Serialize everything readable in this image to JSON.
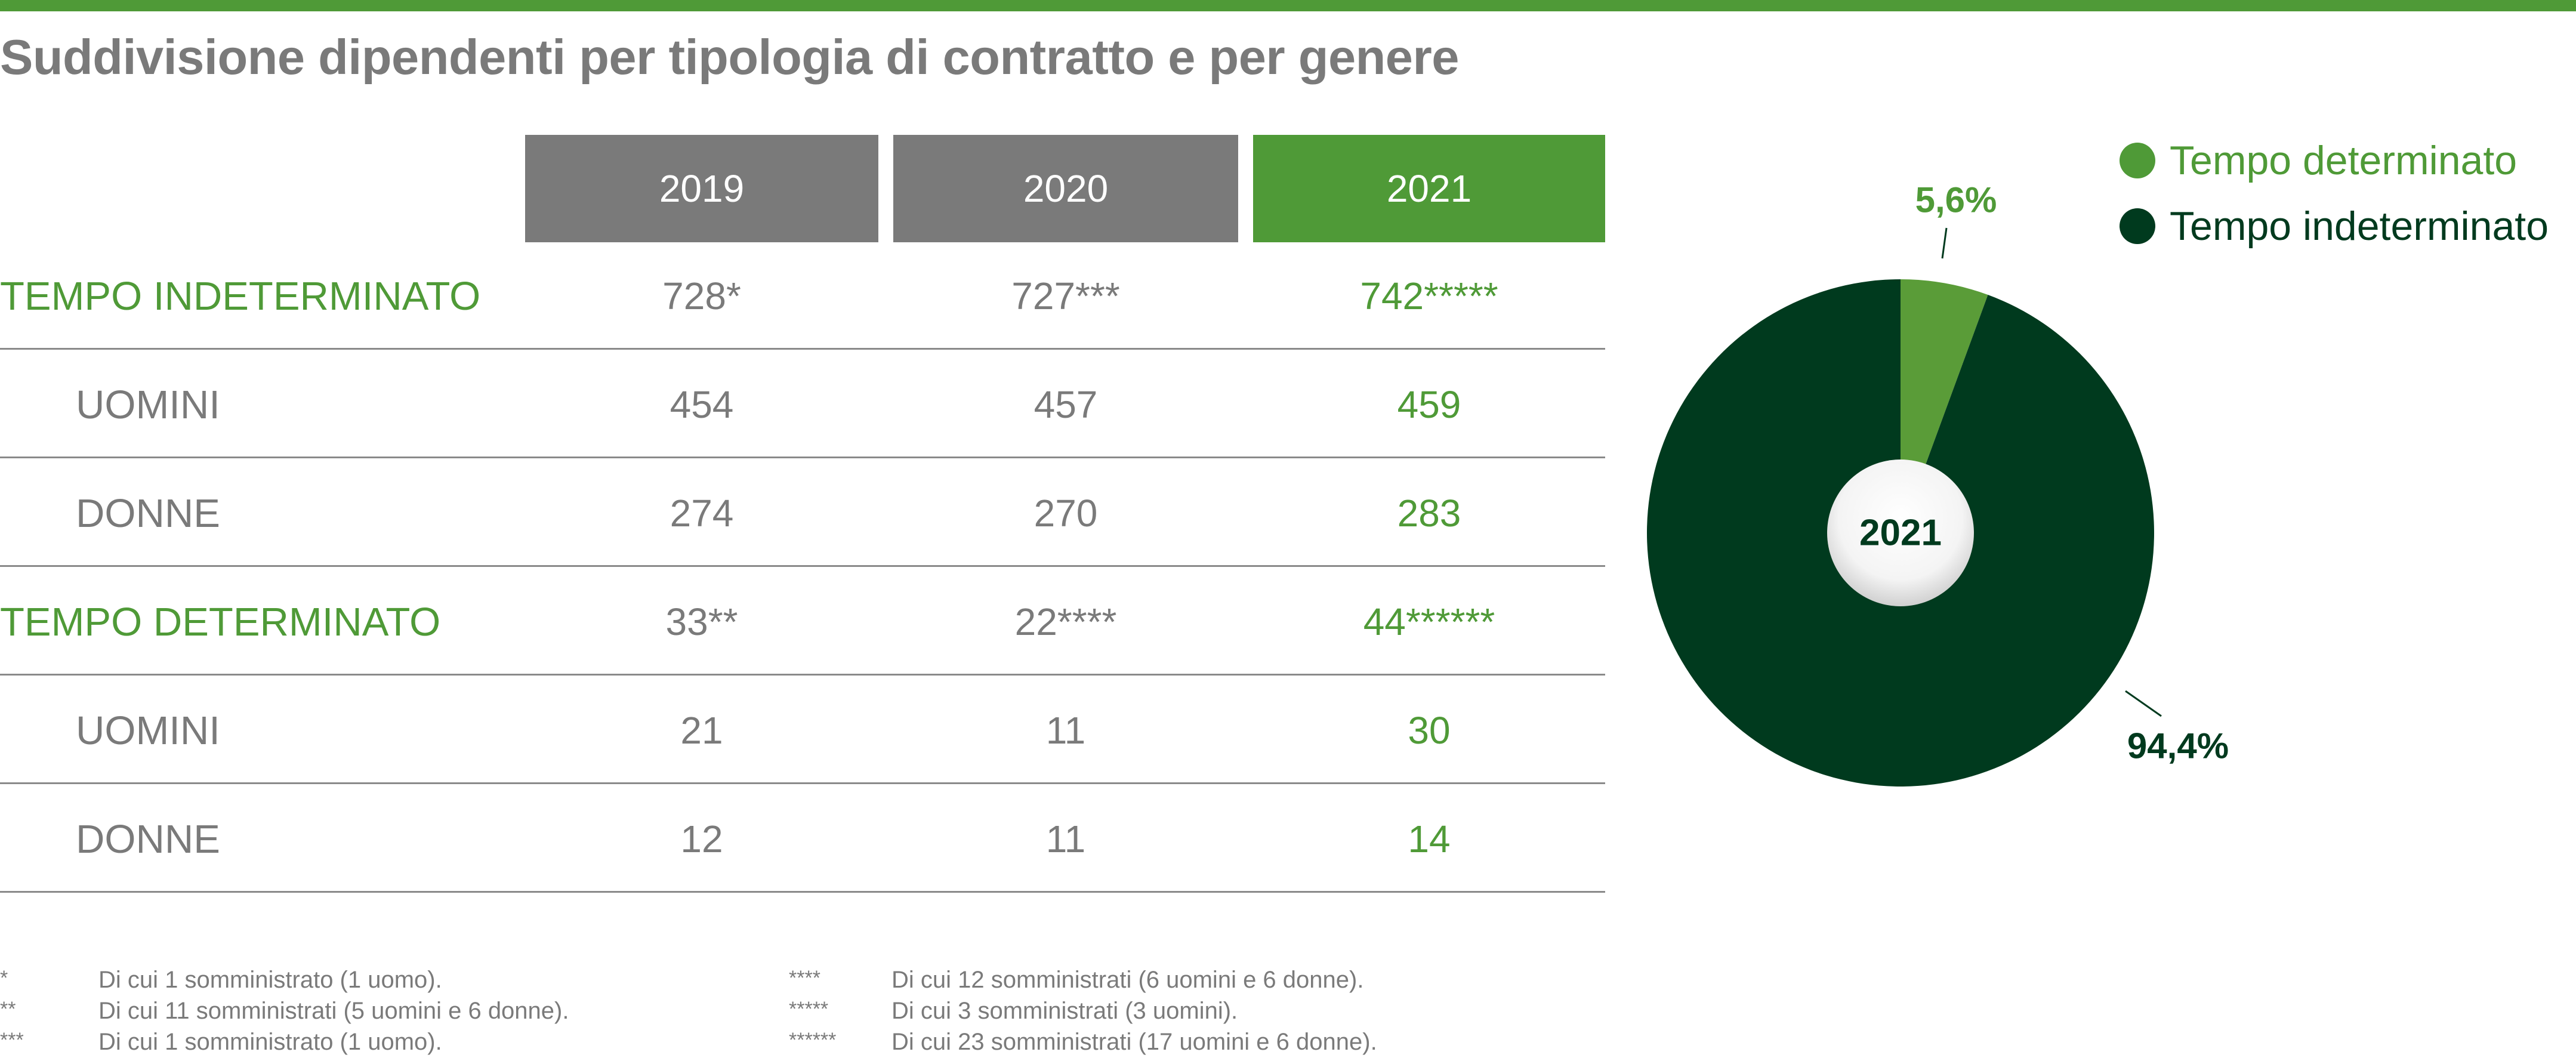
{
  "title": "Suddivisione dipendenti per tipologia di contratto e per genere",
  "colors": {
    "accent": "#4f9a37",
    "dark_green": "#003a1e",
    "gray": "#7a7a7a"
  },
  "table": {
    "years": [
      "2019",
      "2020",
      "2021"
    ],
    "rows": [
      {
        "label": "TEMPO INDETERMINATO",
        "kind": "main",
        "values": [
          "728*",
          "727***",
          "742*****"
        ]
      },
      {
        "label": "UOMINI",
        "kind": "sub",
        "values": [
          "454",
          "457",
          "459"
        ]
      },
      {
        "label": "DONNE",
        "kind": "sub",
        "values": [
          "274",
          "270",
          "283"
        ]
      },
      {
        "label": "TEMPO DETERMINATO",
        "kind": "main",
        "values": [
          "33**",
          "22****",
          "44******"
        ]
      },
      {
        "label": "UOMINI",
        "kind": "sub",
        "values": [
          "21",
          "11",
          "30"
        ]
      },
      {
        "label": "DONNE",
        "kind": "sub",
        "values": [
          "12",
          "11",
          "14"
        ]
      }
    ]
  },
  "footnotes": {
    "left": [
      {
        "mark": "*",
        "text": "Di cui 1 somministrato (1 uomo)."
      },
      {
        "mark": "**",
        "text": "Di cui 11 somministrati (5 uomini e 6 donne)."
      },
      {
        "mark": "***",
        "text": "Di cui 1 somministrato (1 uomo)."
      }
    ],
    "right": [
      {
        "mark": "****",
        "text": "Di cui 12 somministrati (6 uomini e 6 donne)."
      },
      {
        "mark": "*****",
        "text": "Di cui 3 somministrati (3 uomini)."
      },
      {
        "mark": "******",
        "text": "Di cui 23 somministrati (17 uomini e 6 donne)."
      }
    ]
  },
  "legend": [
    {
      "label": "Tempo determinato",
      "color": "#4f9a37"
    },
    {
      "label": "Tempo indeterminato",
      "color": "#003a1e"
    }
  ],
  "chart_data": {
    "type": "pie",
    "center_label": "2021",
    "slices": [
      {
        "name": "Tempo determinato",
        "value": 5.6,
        "label": "5,6%",
        "color": "#5a9c38"
      },
      {
        "name": "Tempo indeterminato",
        "value": 94.4,
        "label": "94,4%",
        "color": "#003a1e"
      }
    ],
    "legend_position": "top-right"
  }
}
